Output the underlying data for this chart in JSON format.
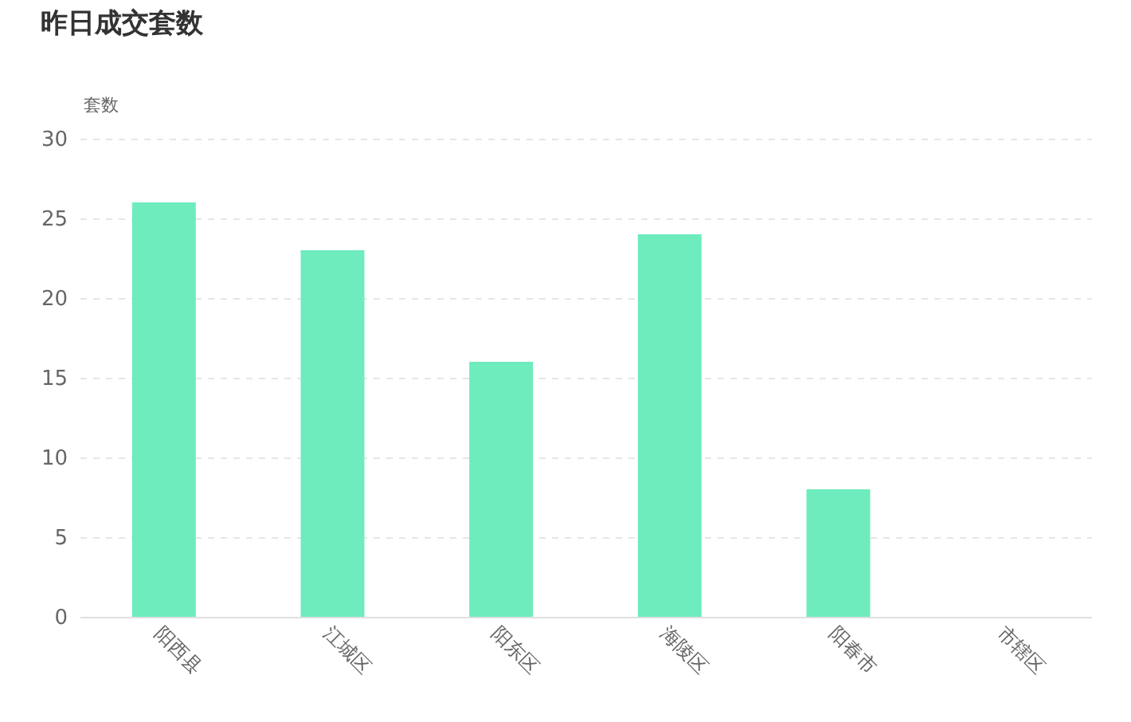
{
  "chart_data": {
    "type": "bar",
    "title": "昨日成交套数",
    "ylabel": "套数",
    "categories": [
      "阳西县",
      "江城区",
      "阳东区",
      "海陵区",
      "阳春市",
      "市辖区"
    ],
    "values": [
      26,
      23,
      16,
      24,
      8,
      0
    ],
    "color": "#6eecbe",
    "ylim": [
      0,
      30
    ],
    "yticks": [
      0,
      5,
      10,
      15,
      20,
      25,
      30
    ],
    "grid": "y"
  }
}
